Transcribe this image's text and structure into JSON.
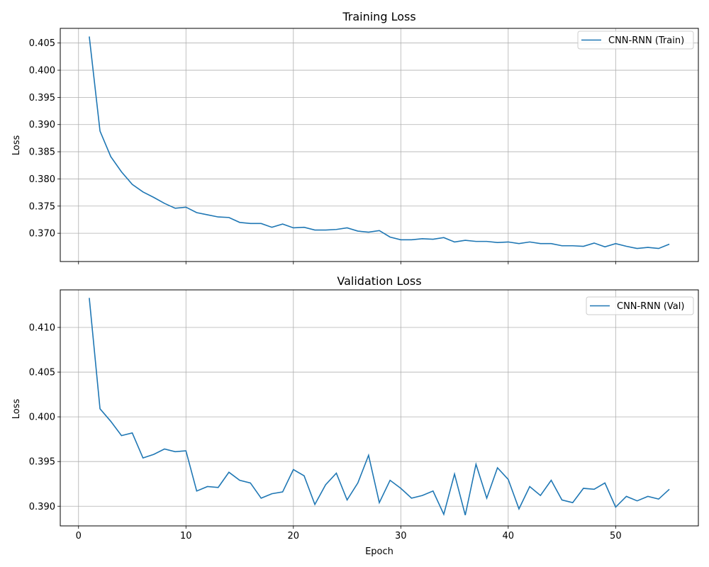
{
  "series_color": "#1f77b4",
  "grid_color": "#b0b0b0",
  "chart_data": [
    {
      "type": "line",
      "title": "Training Loss",
      "xlabel": "",
      "ylabel": "Loss",
      "xlim": [
        -1.7,
        57.7
      ],
      "ylim": [
        0.3648,
        0.4077
      ],
      "xticks": [
        0,
        10,
        20,
        30,
        40,
        50
      ],
      "xtick_labels_visible": false,
      "yticks": [
        0.37,
        0.375,
        0.38,
        0.385,
        0.39,
        0.395,
        0.4,
        0.405
      ],
      "ytick_labels": [
        "0.370",
        "0.375",
        "0.380",
        "0.385",
        "0.390",
        "0.395",
        "0.400",
        "0.405"
      ],
      "grid": true,
      "legend_position": "top-right",
      "series": [
        {
          "name": "CNN-RNN (Train)",
          "x": [
            1,
            2,
            3,
            4,
            5,
            6,
            7,
            8,
            9,
            10,
            11,
            12,
            13,
            14,
            15,
            16,
            17,
            18,
            19,
            20,
            21,
            22,
            23,
            24,
            25,
            26,
            27,
            28,
            29,
            30,
            31,
            32,
            33,
            34,
            35,
            36,
            37,
            38,
            39,
            40,
            41,
            42,
            43,
            44,
            45,
            46,
            47,
            48,
            49,
            50,
            51,
            52,
            53,
            54,
            55
          ],
          "y": [
            0.4062,
            0.3888,
            0.3841,
            0.3813,
            0.379,
            0.3776,
            0.3766,
            0.3755,
            0.3746,
            0.3748,
            0.3738,
            0.3734,
            0.373,
            0.3729,
            0.372,
            0.3718,
            0.3718,
            0.3711,
            0.3717,
            0.371,
            0.3711,
            0.3706,
            0.3706,
            0.3707,
            0.371,
            0.3704,
            0.3702,
            0.3705,
            0.3693,
            0.3688,
            0.3688,
            0.369,
            0.3689,
            0.3692,
            0.3684,
            0.3687,
            0.3685,
            0.3685,
            0.3683,
            0.3684,
            0.3681,
            0.3684,
            0.3681,
            0.3681,
            0.3677,
            0.3677,
            0.3676,
            0.3682,
            0.3675,
            0.3681,
            0.3676,
            0.3672,
            0.3674,
            0.3672,
            0.368
          ]
        }
      ]
    },
    {
      "type": "line",
      "title": "Validation Loss",
      "xlabel": "Epoch",
      "ylabel": "Loss",
      "xlim": [
        -1.7,
        57.7
      ],
      "ylim": [
        0.3878,
        0.4142
      ],
      "xticks": [
        0,
        10,
        20,
        30,
        40,
        50
      ],
      "xtick_labels": [
        "0",
        "10",
        "20",
        "30",
        "40",
        "50"
      ],
      "xtick_labels_visible": true,
      "yticks": [
        0.39,
        0.395,
        0.4,
        0.405,
        0.41
      ],
      "ytick_labels": [
        "0.390",
        "0.395",
        "0.400",
        "0.405",
        "0.410"
      ],
      "grid": true,
      "legend_position": "top-right",
      "series": [
        {
          "name": "CNN-RNN (Val)",
          "x": [
            1,
            2,
            3,
            4,
            5,
            6,
            7,
            8,
            9,
            10,
            11,
            12,
            13,
            14,
            15,
            16,
            17,
            18,
            19,
            20,
            21,
            22,
            23,
            24,
            25,
            26,
            27,
            28,
            29,
            30,
            31,
            32,
            33,
            34,
            35,
            36,
            37,
            38,
            39,
            40,
            41,
            42,
            43,
            44,
            45,
            46,
            47,
            48,
            49,
            50,
            51,
            52,
            53,
            54,
            55
          ],
          "y": [
            0.4133,
            0.4009,
            0.3995,
            0.3979,
            0.3982,
            0.3954,
            0.3958,
            0.3964,
            0.3961,
            0.3962,
            0.3917,
            0.3922,
            0.3921,
            0.3938,
            0.3929,
            0.3926,
            0.3909,
            0.3914,
            0.3916,
            0.3941,
            0.3934,
            0.3902,
            0.3924,
            0.3937,
            0.3907,
            0.3926,
            0.3957,
            0.3904,
            0.3929,
            0.392,
            0.3909,
            0.3912,
            0.3917,
            0.3891,
            0.3936,
            0.389,
            0.3947,
            0.3909,
            0.3943,
            0.393,
            0.3897,
            0.3922,
            0.3912,
            0.3929,
            0.3907,
            0.3904,
            0.392,
            0.3919,
            0.3926,
            0.3899,
            0.3911,
            0.3906,
            0.3911,
            0.3908,
            0.3919
          ]
        }
      ]
    }
  ]
}
